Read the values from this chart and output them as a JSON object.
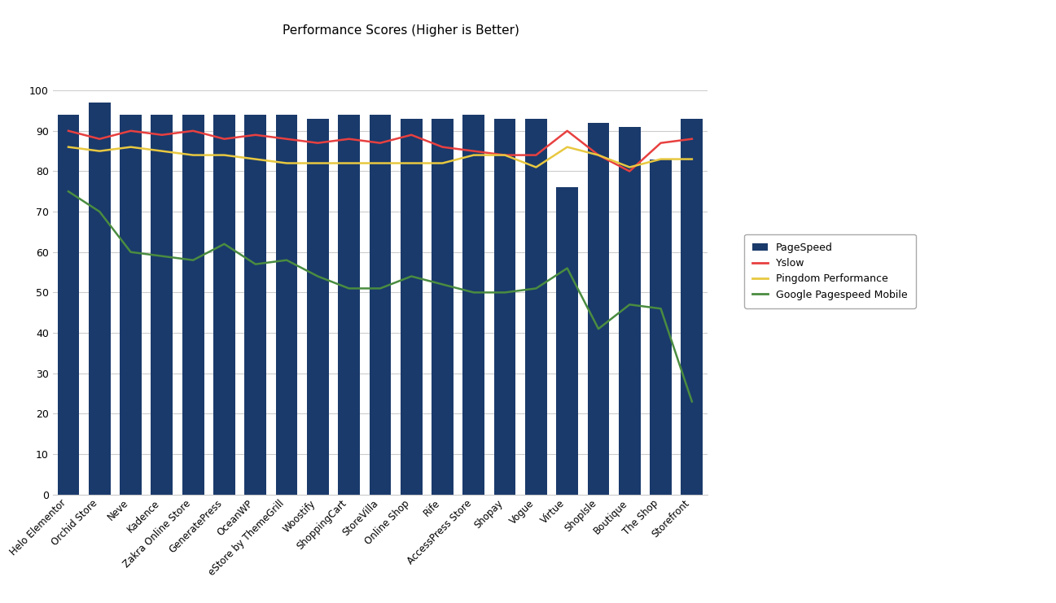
{
  "categories": [
    "Helo Elementor",
    "Orchid Store",
    "Neve",
    "Kadence",
    "Zakra Online Store",
    "GeneratePress",
    "OceanWP",
    "eStore by ThemeGrill",
    "Woostify",
    "ShoppingCart",
    "StoreVilla",
    "Online Shop",
    "Rife",
    "AccessPress Store",
    "Shopay",
    "Vogue",
    "Virtue",
    "ShopIsle",
    "Boutique",
    "The Shop",
    "Storefront"
  ],
  "pagespeed": [
    94,
    97,
    94,
    94,
    94,
    94,
    94,
    94,
    93,
    94,
    94,
    93,
    93,
    94,
    93,
    93,
    76,
    92,
    91,
    83,
    93
  ],
  "yslow": [
    90,
    88,
    90,
    89,
    90,
    88,
    89,
    88,
    87,
    88,
    87,
    89,
    86,
    85,
    84,
    84,
    90,
    84,
    80,
    87,
    88
  ],
  "pingdom": [
    86,
    85,
    86,
    85,
    84,
    84,
    83,
    82,
    82,
    82,
    82,
    82,
    82,
    84,
    84,
    81,
    86,
    84,
    81,
    83,
    83
  ],
  "google_mobile": [
    75,
    70,
    60,
    59,
    58,
    62,
    57,
    58,
    54,
    51,
    51,
    54,
    52,
    50,
    50,
    51,
    56,
    41,
    47,
    46,
    23
  ],
  "bar_color": "#1a3a6b",
  "yslow_color": "#e84040",
  "pingdom_color": "#e8c840",
  "mobile_color": "#4a8c40",
  "title": "Performance Scores (Higher is Better)",
  "title_fontsize": 11,
  "ylim": [
    0,
    100
  ],
  "yticks": [
    0,
    10,
    20,
    30,
    40,
    50,
    60,
    70,
    80,
    90,
    100
  ],
  "bg_color": "#ffffff",
  "grid_color": "#cccccc"
}
